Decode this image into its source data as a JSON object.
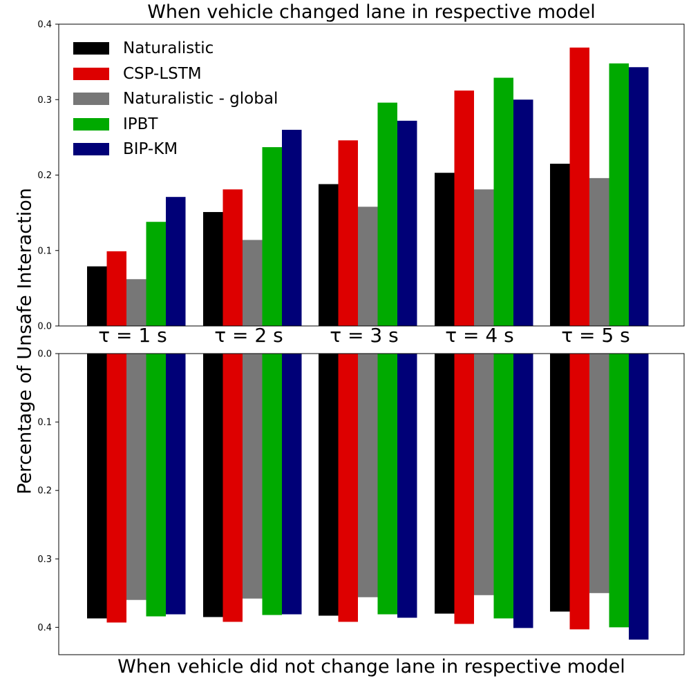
{
  "chart_data": [
    {
      "type": "bar",
      "title": "When vehicle changed lane in respective model",
      "ylabel": "Percentage of Unsafe Interaction",
      "categories": [
        "τ = 1 s",
        "τ = 2 s",
        "τ = 3 s",
        "τ = 4 s",
        "τ = 5 s"
      ],
      "ylim": [
        0,
        0.4
      ],
      "yticks": [
        "0.0",
        "0.1",
        "0.2",
        "0.3",
        "0.4"
      ],
      "legend_position": "top-left",
      "series": [
        {
          "name": "Naturalistic",
          "color": "#000000",
          "values": [
            0.079,
            0.151,
            0.188,
            0.203,
            0.215
          ]
        },
        {
          "name": "CSP-LSTM",
          "color": "#dd0000",
          "values": [
            0.099,
            0.181,
            0.246,
            0.312,
            0.369
          ]
        },
        {
          "name": "Naturalistic - global",
          "color": "#777777",
          "values": [
            0.062,
            0.114,
            0.158,
            0.181,
            0.196
          ]
        },
        {
          "name": "IPBT",
          "color": "#00aa00",
          "values": [
            0.138,
            0.237,
            0.296,
            0.329,
            0.348
          ]
        },
        {
          "name": "BIP-KM",
          "color": "#000077",
          "values": [
            0.171,
            0.26,
            0.272,
            0.3,
            0.343
          ]
        }
      ]
    },
    {
      "type": "bar",
      "title": "When vehicle did not change lane in respective model",
      "inverted_y": true,
      "categories": [
        "τ = 1 s",
        "τ = 2 s",
        "τ = 3 s",
        "τ = 4 s",
        "τ = 5 s"
      ],
      "ylim": [
        0,
        0.44
      ],
      "yticks": [
        "0.0",
        "0.1",
        "0.2",
        "0.3",
        "0.4"
      ],
      "series": [
        {
          "name": "Naturalistic",
          "color": "#000000",
          "values": [
            0.387,
            0.385,
            0.383,
            0.38,
            0.377
          ]
        },
        {
          "name": "CSP-LSTM",
          "color": "#dd0000",
          "values": [
            0.393,
            0.392,
            0.392,
            0.395,
            0.403
          ]
        },
        {
          "name": "Naturalistic - global",
          "color": "#777777",
          "values": [
            0.36,
            0.358,
            0.356,
            0.353,
            0.35
          ]
        },
        {
          "name": "IPBT",
          "color": "#00aa00",
          "values": [
            0.384,
            0.382,
            0.381,
            0.387,
            0.4
          ]
        },
        {
          "name": "BIP-KM",
          "color": "#000077",
          "values": [
            0.381,
            0.381,
            0.386,
            0.401,
            0.418
          ]
        }
      ]
    }
  ]
}
